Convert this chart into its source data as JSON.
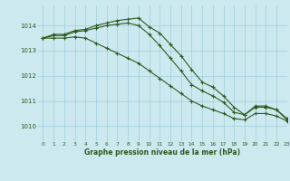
{
  "title": "Graphe pression niveau de la mer (hPa)",
  "bg_color": "#cce9f0",
  "grid_color": "#9ecfdc",
  "line_color": "#2d5a1b",
  "xlim": [
    -0.5,
    23
  ],
  "ylim": [
    1009.4,
    1014.8
  ],
  "yticks": [
    1010,
    1011,
    1012,
    1013,
    1014
  ],
  "xticks": [
    0,
    1,
    2,
    3,
    4,
    5,
    6,
    7,
    8,
    9,
    10,
    11,
    12,
    13,
    14,
    15,
    16,
    17,
    18,
    19,
    20,
    21,
    22,
    23
  ],
  "line1": {
    "x": [
      0,
      1,
      2,
      3,
      4,
      5,
      6,
      7,
      8,
      9,
      10,
      11,
      12,
      13,
      14,
      15,
      16,
      17,
      18,
      19,
      20,
      21,
      22,
      23
    ],
    "y": [
      1013.5,
      1013.65,
      1013.65,
      1013.8,
      1013.85,
      1014.0,
      1014.1,
      1014.2,
      1014.25,
      1014.3,
      1013.95,
      1013.7,
      1013.25,
      1012.8,
      1012.25,
      1011.75,
      1011.55,
      1011.2,
      1010.75,
      1010.45,
      1010.75,
      1010.75,
      1010.65,
      1010.3
    ]
  },
  "line2": {
    "x": [
      0,
      1,
      2,
      3,
      4,
      5,
      6,
      7,
      8,
      9,
      10,
      11,
      12,
      13,
      14,
      15,
      16,
      17,
      18,
      19,
      20,
      21,
      22,
      23
    ],
    "y": [
      1013.5,
      1013.6,
      1013.6,
      1013.75,
      1013.8,
      1013.9,
      1014.0,
      1014.05,
      1014.1,
      1014.0,
      1013.65,
      1013.2,
      1012.7,
      1012.2,
      1011.65,
      1011.4,
      1011.2,
      1010.95,
      1010.55,
      1010.45,
      1010.8,
      1010.8,
      1010.65,
      1010.25
    ]
  },
  "line3": {
    "x": [
      0,
      1,
      2,
      3,
      4,
      5,
      6,
      7,
      8,
      9,
      10,
      11,
      12,
      13,
      14,
      15,
      16,
      17,
      18,
      19,
      20,
      21,
      22,
      23
    ],
    "y": [
      1013.5,
      1013.5,
      1013.5,
      1013.55,
      1013.5,
      1013.3,
      1013.1,
      1012.9,
      1012.7,
      1012.5,
      1012.2,
      1011.9,
      1011.6,
      1011.3,
      1011.0,
      1010.8,
      1010.65,
      1010.5,
      1010.3,
      1010.25,
      1010.5,
      1010.5,
      1010.4,
      1010.2
    ]
  }
}
